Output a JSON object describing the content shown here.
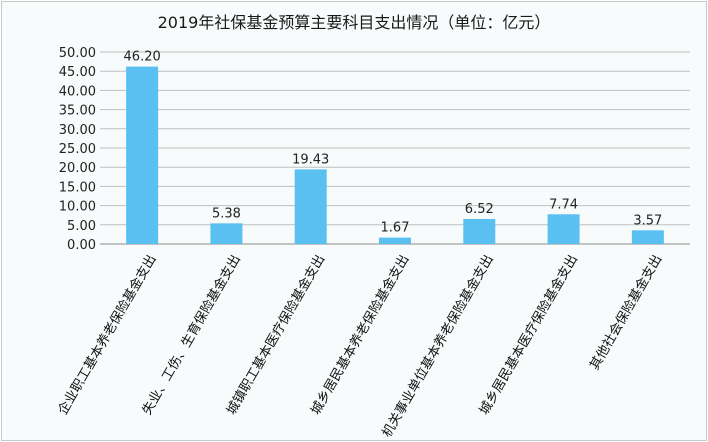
{
  "chart_data": {
    "type": "bar",
    "title": "2019年社保基金预算主要科目支出情况（单位：亿元）",
    "categories": [
      "企业职工基本养老保险基金支出",
      "失业、工伤、生育保险基金支出",
      "城镇职工基本医疗保险基金支出",
      "城乡居民基本养老保险基金支出",
      "机关事业单位基本养老保险基金支出",
      "城乡居民基本医疗保险基金支出",
      "其他社会保险基金支出"
    ],
    "values": [
      46.2,
      5.38,
      19.43,
      1.67,
      6.52,
      7.74,
      3.57
    ],
    "data_labels": [
      "46.20",
      "5.38",
      "19.43",
      "1.67",
      "6.52",
      "7.74",
      "3.57"
    ],
    "ylim": [
      0,
      50
    ],
    "yticks": [
      "0.00",
      "5.00",
      "10.00",
      "15.00",
      "20.00",
      "25.00",
      "30.00",
      "35.00",
      "40.00",
      "45.00",
      "50.00"
    ],
    "xlabel": "",
    "ylabel": "",
    "grid": true,
    "legend": "none",
    "bar_color": "#5ac0f2"
  }
}
